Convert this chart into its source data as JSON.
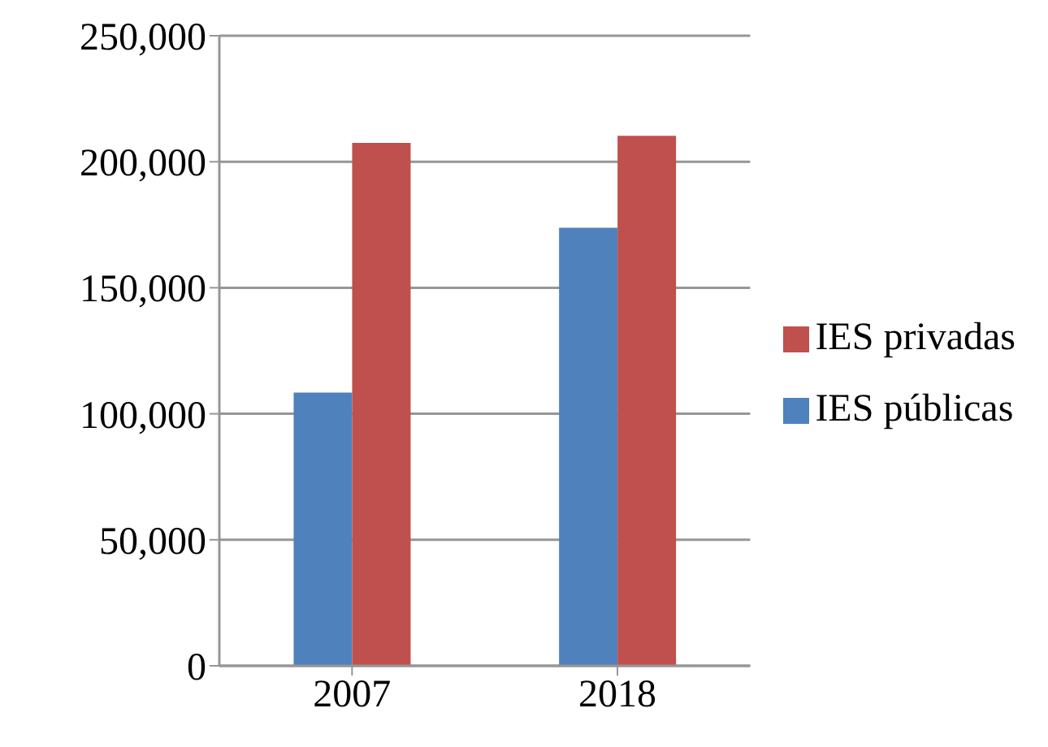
{
  "chart_data": {
    "type": "bar",
    "categories": [
      "2007",
      "2018"
    ],
    "series": [
      {
        "name": "IES públicas",
        "color": "#4f81bd",
        "values": [
          108400,
          173800
        ]
      },
      {
        "name": "IES privadas",
        "color": "#c0504d",
        "values": [
          207500,
          210300
        ]
      }
    ],
    "ylim": [
      0,
      250000
    ],
    "yticks": [
      {
        "value": 0,
        "label": "0"
      },
      {
        "value": 50000,
        "label": "50,000"
      },
      {
        "value": 100000,
        "label": "100,000"
      },
      {
        "value": 150000,
        "label": "150,000"
      },
      {
        "value": 200000,
        "label": "200,000"
      },
      {
        "value": 250000,
        "label": "250,000"
      }
    ],
    "grid": "y",
    "legend": "right"
  }
}
